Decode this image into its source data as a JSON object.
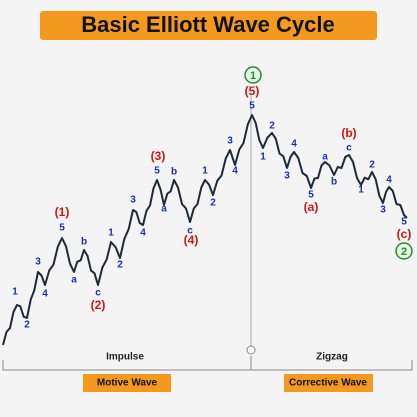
{
  "title": "Basic Elliott Wave Cycle",
  "peak_marker": "1",
  "end_marker": "2",
  "degree_labels": [
    "(1)",
    "(2)",
    "(3)",
    "(4)",
    "(5)",
    "(a)",
    "(b)",
    "(c)"
  ],
  "minor_labels": [
    "1",
    "2",
    "3",
    "4",
    "5",
    "a",
    "b",
    "c",
    "1",
    "2",
    "3",
    "4",
    "5",
    "a",
    "b",
    "c",
    "1",
    "2",
    "3",
    "4",
    "5",
    "1",
    "2",
    "3",
    "4",
    "5",
    "a",
    "b",
    "c",
    "1",
    "2",
    "3",
    "4",
    "5"
  ],
  "sections": [
    {
      "label": "Impulse",
      "badge": "Motive Wave"
    },
    {
      "label": "Zigzag",
      "badge": "Corrective Wave"
    }
  ]
}
